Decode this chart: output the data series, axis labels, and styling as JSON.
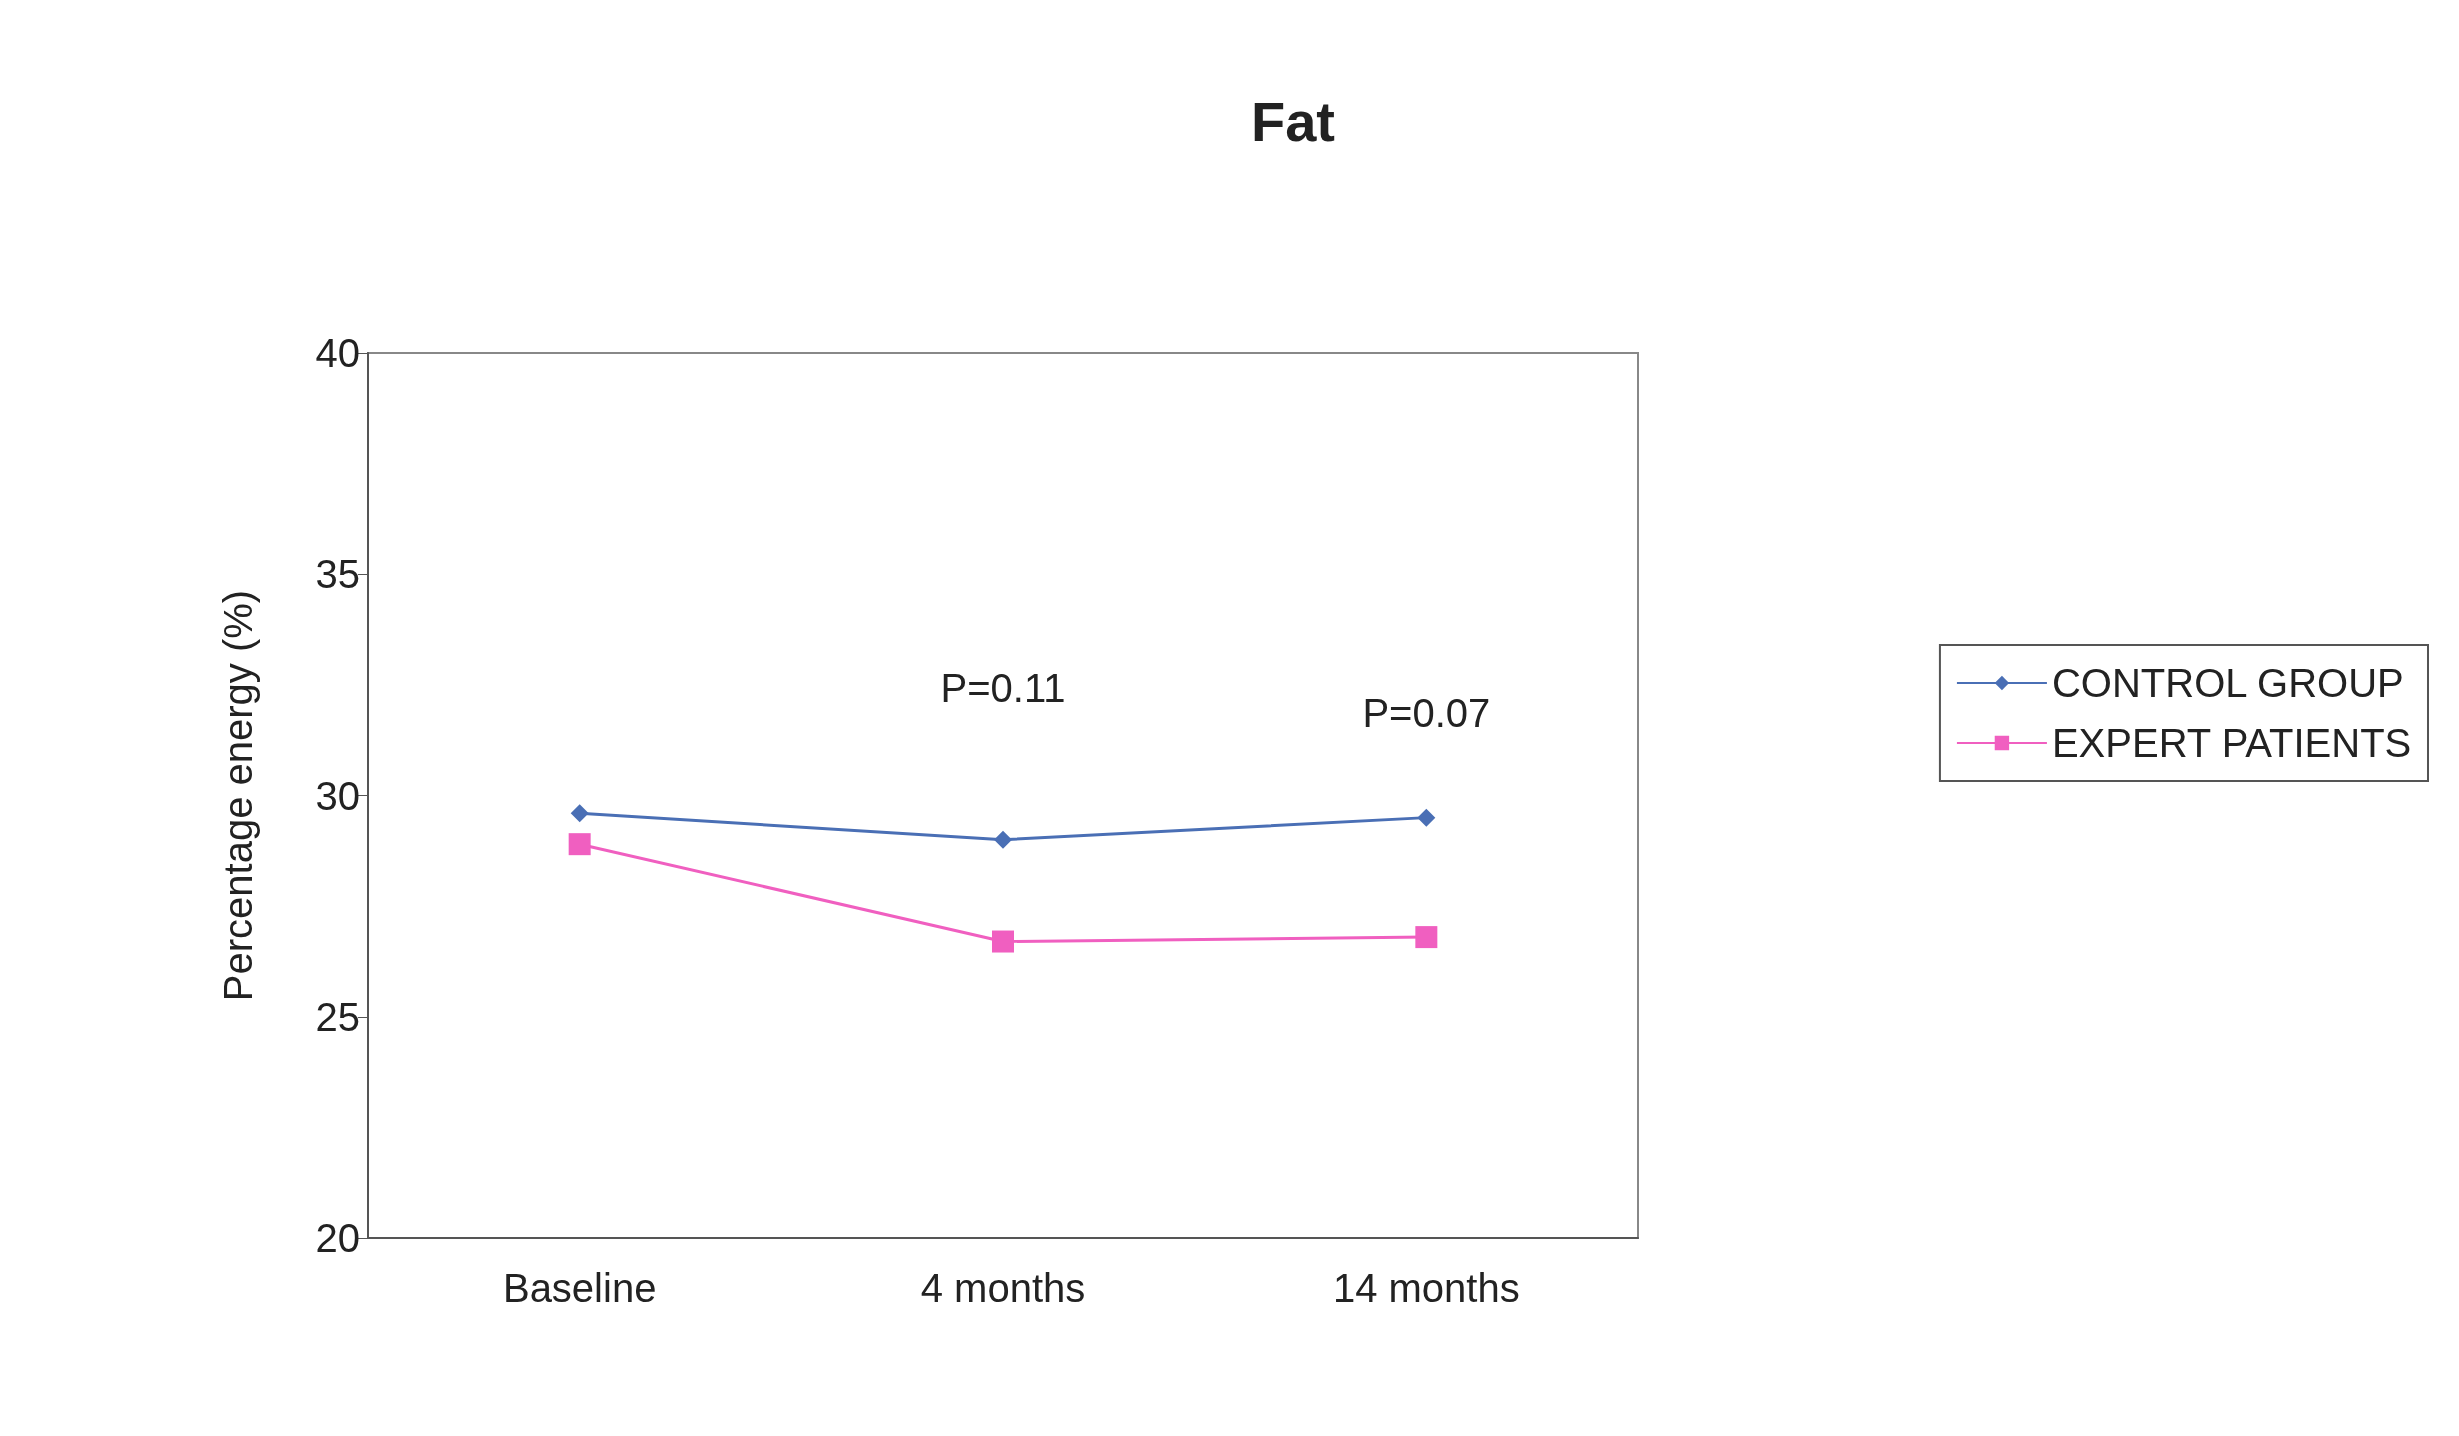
{
  "chart_data": {
    "type": "line",
    "title": "Fat",
    "ylabel": "Percentage energy (%)",
    "categories": [
      "Baseline",
      "4 months",
      "14 months"
    ],
    "series": [
      {
        "name": "CONTROL GROUP",
        "color": "#4a6fb5",
        "values": [
          29.6,
          29.0,
          29.5
        ],
        "marker": "diamond"
      },
      {
        "name": "EXPERT PATIENTS",
        "color": "#f05fc0",
        "values": [
          28.9,
          26.7,
          26.8
        ],
        "marker": "square"
      }
    ],
    "ylim": [
      20,
      40
    ],
    "yticks": [
      20,
      25,
      30,
      35,
      40
    ],
    "grid": false,
    "legend": "right",
    "annotations": [
      "P=0.11",
      "P=0.07"
    ]
  }
}
